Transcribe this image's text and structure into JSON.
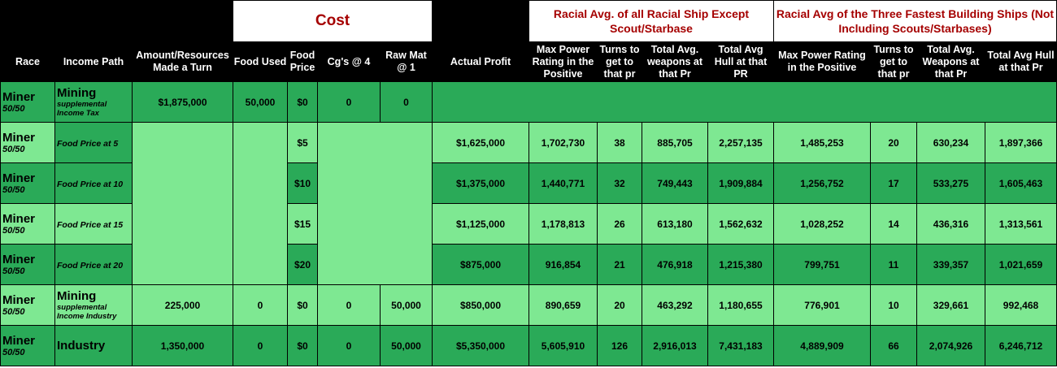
{
  "headers": {
    "cost": "Cost",
    "group1": "Racial Avg. of all Racial Ship Except Scout/Starbase",
    "group2": "Racial Avg of the Three Fastest Building Ships (Not Including Scouts/Starbases)",
    "race": "Race",
    "income_path": "Income Path",
    "amount": "Amount/Resources Made a Turn",
    "food_used": "Food Used",
    "food_price": "Food Price",
    "cgs": "Cg's @ 4",
    "raw_mat": "Raw Mat @ 1",
    "actual_profit": "Actual Profit",
    "g1_power": "Max Power Rating in the Positive",
    "g1_turns": "Turns to get to that pr",
    "g1_weapons": "Total Avg. weapons at that Pr",
    "g1_hull": "Total Avg Hull at that PR",
    "g2_power": "Max Power Rating in the Positive",
    "g2_turns": "Turns to get to that pr",
    "g2_weapons": "Total Avg. Weapons at that Pr",
    "g2_hull": "Total Avg Hull at that Pr"
  },
  "rows": [
    {
      "race": "Miner",
      "ratio": "50/50",
      "income": "Mining",
      "income_sub": "supplemental Income Tax",
      "amount": "$1,875,000",
      "food_used": "50,000",
      "food_price": "$0",
      "cgs": "0",
      "raw_mat": "0"
    },
    {
      "race": "Miner",
      "ratio": "50/50",
      "income": "Food Price at 5",
      "food_price": "$5",
      "profit": "$1,625,000",
      "g1": [
        "1,702,730",
        "38",
        "885,705",
        "2,257,135"
      ],
      "g2": [
        "1,485,253",
        "20",
        "630,234",
        "1,897,366"
      ]
    },
    {
      "race": "Miner",
      "ratio": "50/50",
      "income": "Food Price at 10",
      "food_price": "$10",
      "profit": "$1,375,000",
      "g1": [
        "1,440,771",
        "32",
        "749,443",
        "1,909,884"
      ],
      "g2": [
        "1,256,752",
        "17",
        "533,275",
        "1,605,463"
      ]
    },
    {
      "race": "Miner",
      "ratio": "50/50",
      "income": "Food Price at 15",
      "food_price": "$15",
      "profit": "$1,125,000",
      "g1": [
        "1,178,813",
        "26",
        "613,180",
        "1,562,632"
      ],
      "g2": [
        "1,028,252",
        "14",
        "436,316",
        "1,313,561"
      ]
    },
    {
      "race": "Miner",
      "ratio": "50/50",
      "income": "Food Price at 20",
      "food_price": "$20",
      "profit": "$875,000",
      "g1": [
        "916,854",
        "21",
        "476,918",
        "1,215,380"
      ],
      "g2": [
        "799,751",
        "11",
        "339,357",
        "1,021,659"
      ]
    },
    {
      "race": "Miner",
      "ratio": "50/50",
      "income": "Mining",
      "income_sub": "supplemental Income Industry",
      "amount": "225,000",
      "food_used": "0",
      "food_price": "$0",
      "cgs": "0",
      "raw_mat": "50,000",
      "profit": "$850,000",
      "g1": [
        "890,659",
        "20",
        "463,292",
        "1,180,655"
      ],
      "g2": [
        "776,901",
        "10",
        "329,661",
        "992,468"
      ]
    },
    {
      "race": "Miner",
      "ratio": "50/50",
      "income": "Industry",
      "amount": "1,350,000",
      "food_used": "0",
      "food_price": "$0",
      "cgs": "0",
      "raw_mat": "50,000",
      "profit": "$5,350,000",
      "g1": [
        "5,605,910",
        "126",
        "2,916,013",
        "7,431,183"
      ],
      "g2": [
        "4,889,909",
        "66",
        "2,074,926",
        "6,246,712"
      ]
    }
  ]
}
